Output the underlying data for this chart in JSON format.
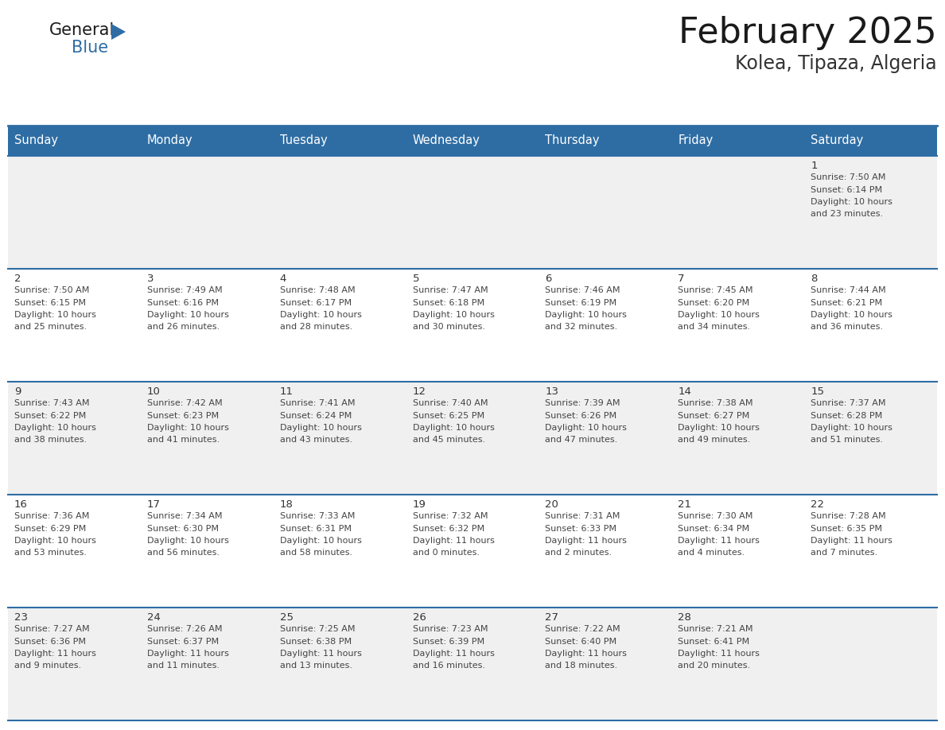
{
  "title": "February 2025",
  "subtitle": "Kolea, Tipaza, Algeria",
  "header_bg": "#2e6da4",
  "header_text_color": "#ffffff",
  "cell_bg_gray": "#f0f0f0",
  "cell_bg_white": "#ffffff",
  "border_color": "#2e6da4",
  "text_color": "#444444",
  "day_num_color": "#333333",
  "day_headers": [
    "Sunday",
    "Monday",
    "Tuesday",
    "Wednesday",
    "Thursday",
    "Friday",
    "Saturday"
  ],
  "weeks": [
    [
      {
        "day": "",
        "text": ""
      },
      {
        "day": "",
        "text": ""
      },
      {
        "day": "",
        "text": ""
      },
      {
        "day": "",
        "text": ""
      },
      {
        "day": "",
        "text": ""
      },
      {
        "day": "",
        "text": ""
      },
      {
        "day": "1",
        "text": "Sunrise: 7:50 AM\nSunset: 6:14 PM\nDaylight: 10 hours\nand 23 minutes."
      }
    ],
    [
      {
        "day": "2",
        "text": "Sunrise: 7:50 AM\nSunset: 6:15 PM\nDaylight: 10 hours\nand 25 minutes."
      },
      {
        "day": "3",
        "text": "Sunrise: 7:49 AM\nSunset: 6:16 PM\nDaylight: 10 hours\nand 26 minutes."
      },
      {
        "day": "4",
        "text": "Sunrise: 7:48 AM\nSunset: 6:17 PM\nDaylight: 10 hours\nand 28 minutes."
      },
      {
        "day": "5",
        "text": "Sunrise: 7:47 AM\nSunset: 6:18 PM\nDaylight: 10 hours\nand 30 minutes."
      },
      {
        "day": "6",
        "text": "Sunrise: 7:46 AM\nSunset: 6:19 PM\nDaylight: 10 hours\nand 32 minutes."
      },
      {
        "day": "7",
        "text": "Sunrise: 7:45 AM\nSunset: 6:20 PM\nDaylight: 10 hours\nand 34 minutes."
      },
      {
        "day": "8",
        "text": "Sunrise: 7:44 AM\nSunset: 6:21 PM\nDaylight: 10 hours\nand 36 minutes."
      }
    ],
    [
      {
        "day": "9",
        "text": "Sunrise: 7:43 AM\nSunset: 6:22 PM\nDaylight: 10 hours\nand 38 minutes."
      },
      {
        "day": "10",
        "text": "Sunrise: 7:42 AM\nSunset: 6:23 PM\nDaylight: 10 hours\nand 41 minutes."
      },
      {
        "day": "11",
        "text": "Sunrise: 7:41 AM\nSunset: 6:24 PM\nDaylight: 10 hours\nand 43 minutes."
      },
      {
        "day": "12",
        "text": "Sunrise: 7:40 AM\nSunset: 6:25 PM\nDaylight: 10 hours\nand 45 minutes."
      },
      {
        "day": "13",
        "text": "Sunrise: 7:39 AM\nSunset: 6:26 PM\nDaylight: 10 hours\nand 47 minutes."
      },
      {
        "day": "14",
        "text": "Sunrise: 7:38 AM\nSunset: 6:27 PM\nDaylight: 10 hours\nand 49 minutes."
      },
      {
        "day": "15",
        "text": "Sunrise: 7:37 AM\nSunset: 6:28 PM\nDaylight: 10 hours\nand 51 minutes."
      }
    ],
    [
      {
        "day": "16",
        "text": "Sunrise: 7:36 AM\nSunset: 6:29 PM\nDaylight: 10 hours\nand 53 minutes."
      },
      {
        "day": "17",
        "text": "Sunrise: 7:34 AM\nSunset: 6:30 PM\nDaylight: 10 hours\nand 56 minutes."
      },
      {
        "day": "18",
        "text": "Sunrise: 7:33 AM\nSunset: 6:31 PM\nDaylight: 10 hours\nand 58 minutes."
      },
      {
        "day": "19",
        "text": "Sunrise: 7:32 AM\nSunset: 6:32 PM\nDaylight: 11 hours\nand 0 minutes."
      },
      {
        "day": "20",
        "text": "Sunrise: 7:31 AM\nSunset: 6:33 PM\nDaylight: 11 hours\nand 2 minutes."
      },
      {
        "day": "21",
        "text": "Sunrise: 7:30 AM\nSunset: 6:34 PM\nDaylight: 11 hours\nand 4 minutes."
      },
      {
        "day": "22",
        "text": "Sunrise: 7:28 AM\nSunset: 6:35 PM\nDaylight: 11 hours\nand 7 minutes."
      }
    ],
    [
      {
        "day": "23",
        "text": "Sunrise: 7:27 AM\nSunset: 6:36 PM\nDaylight: 11 hours\nand 9 minutes."
      },
      {
        "day": "24",
        "text": "Sunrise: 7:26 AM\nSunset: 6:37 PM\nDaylight: 11 hours\nand 11 minutes."
      },
      {
        "day": "25",
        "text": "Sunrise: 7:25 AM\nSunset: 6:38 PM\nDaylight: 11 hours\nand 13 minutes."
      },
      {
        "day": "26",
        "text": "Sunrise: 7:23 AM\nSunset: 6:39 PM\nDaylight: 11 hours\nand 16 minutes."
      },
      {
        "day": "27",
        "text": "Sunrise: 7:22 AM\nSunset: 6:40 PM\nDaylight: 11 hours\nand 18 minutes."
      },
      {
        "day": "28",
        "text": "Sunrise: 7:21 AM\nSunset: 6:41 PM\nDaylight: 11 hours\nand 20 minutes."
      },
      {
        "day": "",
        "text": ""
      }
    ]
  ],
  "logo_text_general": "General",
  "logo_text_blue": "Blue",
  "logo_color_general": "#1a1a1a",
  "logo_color_blue": "#2e6da4",
  "logo_triangle_color": "#2e6da4",
  "title_fontsize": 32,
  "subtitle_fontsize": 17,
  "header_fontsize": 10.5,
  "day_num_fontsize": 9.5,
  "cell_text_fontsize": 8.0
}
